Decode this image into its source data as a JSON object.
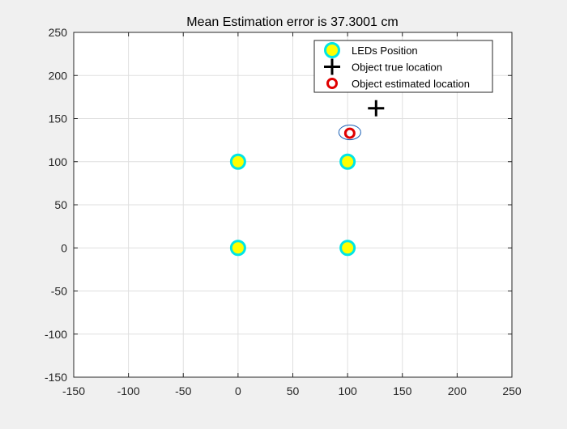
{
  "figure_title": "Mean Estimation error is 37.3001 cm",
  "chart_data": {
    "type": "scatter",
    "title": "Mean Estimation error is 37.3001 cm",
    "xlabel": "",
    "ylabel": "",
    "xlim": [
      -150,
      250
    ],
    "ylim": [
      -150,
      250
    ],
    "xticks": [
      -150,
      -100,
      -50,
      0,
      50,
      100,
      150,
      200,
      250
    ],
    "yticks": [
      -150,
      -100,
      -50,
      0,
      50,
      100,
      150,
      200,
      250
    ],
    "grid": true,
    "legend_position": "top-right",
    "series": [
      {
        "name": "LEDs Position",
        "marker": "circle-filled",
        "fill": "#ffff00",
        "edge": "#00e5e5",
        "points": [
          [
            0,
            0
          ],
          [
            100,
            0
          ],
          [
            0,
            100
          ],
          [
            100,
            100
          ]
        ]
      },
      {
        "name": "Object true location",
        "marker": "plus",
        "edge": "#000000",
        "points": [
          [
            126,
            162
          ]
        ]
      },
      {
        "name": "Object estimated location",
        "marker": "circle-open",
        "edge": "#e00000",
        "points": [
          [
            102,
            133
          ]
        ]
      }
    ],
    "annotations": [
      {
        "type": "ellipse",
        "center": [
          102,
          134
        ],
        "rx": 10,
        "ry": 8.5,
        "stroke": "#1a5fb4"
      }
    ]
  }
}
